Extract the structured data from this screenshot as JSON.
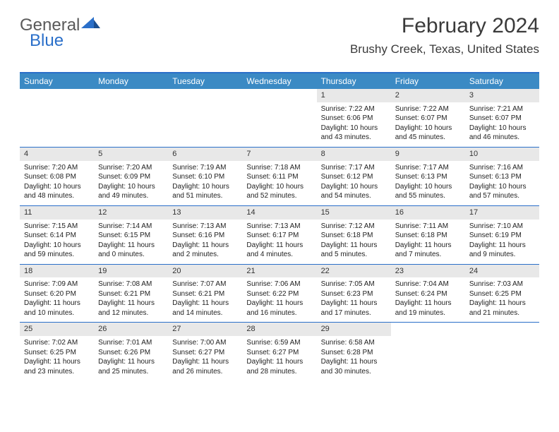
{
  "logo": {
    "text1": "General",
    "text2": "Blue"
  },
  "title": "February 2024",
  "location": "Brushy Creek, Texas, United States",
  "colors": {
    "header_bg": "#3b8ac4",
    "border": "#2a6fc9",
    "daynum_bg": "#e8e8e8",
    "text": "#222222"
  },
  "day_headers": [
    "Sunday",
    "Monday",
    "Tuesday",
    "Wednesday",
    "Thursday",
    "Friday",
    "Saturday"
  ],
  "weeks": [
    [
      {
        "empty": true
      },
      {
        "empty": true
      },
      {
        "empty": true
      },
      {
        "empty": true
      },
      {
        "n": "1",
        "sunrise": "7:22 AM",
        "sunset": "6:06 PM",
        "daylight": "10 hours and 43 minutes."
      },
      {
        "n": "2",
        "sunrise": "7:22 AM",
        "sunset": "6:07 PM",
        "daylight": "10 hours and 45 minutes."
      },
      {
        "n": "3",
        "sunrise": "7:21 AM",
        "sunset": "6:07 PM",
        "daylight": "10 hours and 46 minutes."
      }
    ],
    [
      {
        "n": "4",
        "sunrise": "7:20 AM",
        "sunset": "6:08 PM",
        "daylight": "10 hours and 48 minutes."
      },
      {
        "n": "5",
        "sunrise": "7:20 AM",
        "sunset": "6:09 PM",
        "daylight": "10 hours and 49 minutes."
      },
      {
        "n": "6",
        "sunrise": "7:19 AM",
        "sunset": "6:10 PM",
        "daylight": "10 hours and 51 minutes."
      },
      {
        "n": "7",
        "sunrise": "7:18 AM",
        "sunset": "6:11 PM",
        "daylight": "10 hours and 52 minutes."
      },
      {
        "n": "8",
        "sunrise": "7:17 AM",
        "sunset": "6:12 PM",
        "daylight": "10 hours and 54 minutes."
      },
      {
        "n": "9",
        "sunrise": "7:17 AM",
        "sunset": "6:13 PM",
        "daylight": "10 hours and 55 minutes."
      },
      {
        "n": "10",
        "sunrise": "7:16 AM",
        "sunset": "6:13 PM",
        "daylight": "10 hours and 57 minutes."
      }
    ],
    [
      {
        "n": "11",
        "sunrise": "7:15 AM",
        "sunset": "6:14 PM",
        "daylight": "10 hours and 59 minutes."
      },
      {
        "n": "12",
        "sunrise": "7:14 AM",
        "sunset": "6:15 PM",
        "daylight": "11 hours and 0 minutes."
      },
      {
        "n": "13",
        "sunrise": "7:13 AM",
        "sunset": "6:16 PM",
        "daylight": "11 hours and 2 minutes."
      },
      {
        "n": "14",
        "sunrise": "7:13 AM",
        "sunset": "6:17 PM",
        "daylight": "11 hours and 4 minutes."
      },
      {
        "n": "15",
        "sunrise": "7:12 AM",
        "sunset": "6:18 PM",
        "daylight": "11 hours and 5 minutes."
      },
      {
        "n": "16",
        "sunrise": "7:11 AM",
        "sunset": "6:18 PM",
        "daylight": "11 hours and 7 minutes."
      },
      {
        "n": "17",
        "sunrise": "7:10 AM",
        "sunset": "6:19 PM",
        "daylight": "11 hours and 9 minutes."
      }
    ],
    [
      {
        "n": "18",
        "sunrise": "7:09 AM",
        "sunset": "6:20 PM",
        "daylight": "11 hours and 10 minutes."
      },
      {
        "n": "19",
        "sunrise": "7:08 AM",
        "sunset": "6:21 PM",
        "daylight": "11 hours and 12 minutes."
      },
      {
        "n": "20",
        "sunrise": "7:07 AM",
        "sunset": "6:21 PM",
        "daylight": "11 hours and 14 minutes."
      },
      {
        "n": "21",
        "sunrise": "7:06 AM",
        "sunset": "6:22 PM",
        "daylight": "11 hours and 16 minutes."
      },
      {
        "n": "22",
        "sunrise": "7:05 AM",
        "sunset": "6:23 PM",
        "daylight": "11 hours and 17 minutes."
      },
      {
        "n": "23",
        "sunrise": "7:04 AM",
        "sunset": "6:24 PM",
        "daylight": "11 hours and 19 minutes."
      },
      {
        "n": "24",
        "sunrise": "7:03 AM",
        "sunset": "6:25 PM",
        "daylight": "11 hours and 21 minutes."
      }
    ],
    [
      {
        "n": "25",
        "sunrise": "7:02 AM",
        "sunset": "6:25 PM",
        "daylight": "11 hours and 23 minutes."
      },
      {
        "n": "26",
        "sunrise": "7:01 AM",
        "sunset": "6:26 PM",
        "daylight": "11 hours and 25 minutes."
      },
      {
        "n": "27",
        "sunrise": "7:00 AM",
        "sunset": "6:27 PM",
        "daylight": "11 hours and 26 minutes."
      },
      {
        "n": "28",
        "sunrise": "6:59 AM",
        "sunset": "6:27 PM",
        "daylight": "11 hours and 28 minutes."
      },
      {
        "n": "29",
        "sunrise": "6:58 AM",
        "sunset": "6:28 PM",
        "daylight": "11 hours and 30 minutes."
      },
      {
        "empty": true
      },
      {
        "empty": true
      }
    ]
  ],
  "labels": {
    "sunrise": "Sunrise:",
    "sunset": "Sunset:",
    "daylight": "Daylight:"
  }
}
